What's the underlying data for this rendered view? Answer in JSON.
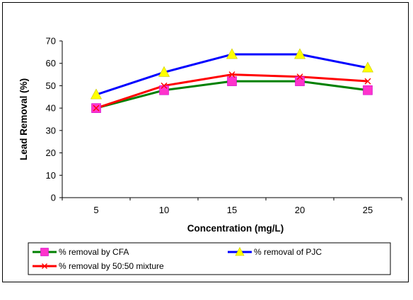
{
  "chart_data": {
    "type": "line",
    "title": "",
    "xlabel": "Concentration (mg/L)",
    "ylabel": "Lead Removal (%)",
    "categories": [
      "5",
      "10",
      "15",
      "20",
      "25"
    ],
    "ylim": [
      0,
      70
    ],
    "yticks": [
      "0",
      "10",
      "20",
      "30",
      "40",
      "50",
      "60",
      "70"
    ],
    "grid": false,
    "legend_position": "bottom",
    "series": [
      {
        "name": "% removal by CFA",
        "values": [
          40,
          48,
          52,
          52,
          48
        ],
        "color": "#008000",
        "marker": "square",
        "marker_color": "#ff33cc"
      },
      {
        "name": "% removal of PJC",
        "values": [
          46,
          56,
          64,
          64,
          58
        ],
        "color": "#0000ff",
        "marker": "triangle",
        "marker_color": "#ffff00"
      },
      {
        "name": "% removal by 50:50 mixture",
        "values": [
          40,
          50,
          55,
          54,
          52
        ],
        "color": "#ff0000",
        "marker": "x",
        "marker_color": "#ff0000"
      }
    ]
  }
}
